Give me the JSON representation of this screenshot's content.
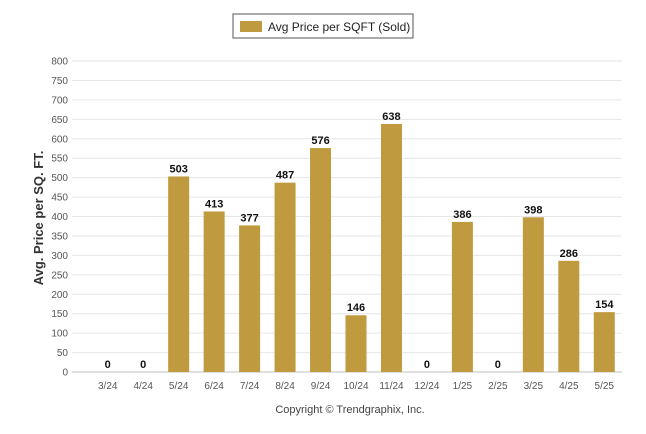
{
  "chart_data": {
    "type": "bar",
    "ylabel": "Avg. Price per SQ. FT.",
    "xlabel": "",
    "categories": [
      "3/24",
      "4/24",
      "5/24",
      "6/24",
      "7/24",
      "8/24",
      "9/24",
      "10/24",
      "11/24",
      "12/24",
      "1/25",
      "2/25",
      "3/25",
      "4/25",
      "5/25"
    ],
    "series": [
      {
        "name": "Avg Price per SQFT (Sold)",
        "color": "#c09a3e",
        "values": [
          0,
          0,
          503,
          413,
          377,
          487,
          576,
          146,
          638,
          0,
          386,
          0,
          398,
          286,
          154
        ]
      }
    ],
    "ylim": [
      0,
      800
    ],
    "yticks": [
      0,
      50,
      100,
      150,
      200,
      250,
      300,
      350,
      400,
      450,
      500,
      550,
      600,
      650,
      700,
      750,
      800
    ],
    "grid": true,
    "legend_position": "top-center",
    "data_labels": true
  },
  "footer": {
    "copyright": "Copyright © Trendgraphix, Inc."
  }
}
